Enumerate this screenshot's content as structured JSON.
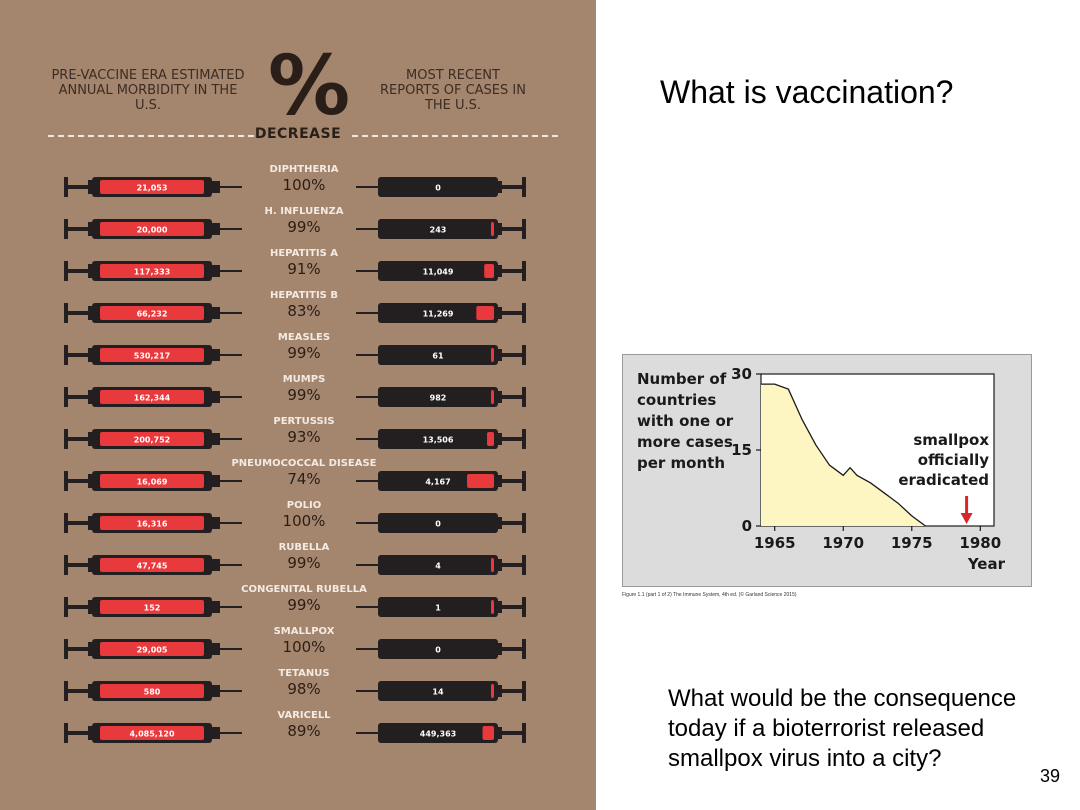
{
  "slide": {
    "title": "What is vaccination?",
    "question": "What would be the consequence today if a bioterrorist released smallpox virus into a city?",
    "page_number": "39",
    "figure_caption": "Figure 1.1 (part 1 of 2) The Immune System, 4th ed. (© Garland Science 2015)"
  },
  "infographic": {
    "header_left": "PRE-VACCINE ERA ESTIMATED ANNUAL MORBIDITY IN THE U.S.",
    "header_right": "MOST RECENT REPORTS OF CASES IN THE U.S.",
    "percent_symbol": "%",
    "decrease_label": "DECREASE",
    "colors": {
      "background": "#a4856d",
      "syringe": "#231f20",
      "fill": "#e8393c"
    },
    "rows": [
      {
        "disease": "DIPHTHERIA",
        "pct": "100%",
        "pre": "21,053",
        "recent": "0"
      },
      {
        "disease": "H. INFLUENZA",
        "pct": "99%",
        "pre": "20,000",
        "recent": "243"
      },
      {
        "disease": "HEPATITIS A",
        "pct": "91%",
        "pre": "117,333",
        "recent": "11,049"
      },
      {
        "disease": "HEPATITIS B",
        "pct": "83%",
        "pre": "66,232",
        "recent": "11,269"
      },
      {
        "disease": "MEASLES",
        "pct": "99%",
        "pre": "530,217",
        "recent": "61"
      },
      {
        "disease": "MUMPS",
        "pct": "99%",
        "pre": "162,344",
        "recent": "982"
      },
      {
        "disease": "PERTUSSIS",
        "pct": "93%",
        "pre": "200,752",
        "recent": "13,506"
      },
      {
        "disease": "PNEUMOCOCCAL DISEASE",
        "pct": "74%",
        "pre": "16,069",
        "recent": "4,167"
      },
      {
        "disease": "POLIO",
        "pct": "100%",
        "pre": "16,316",
        "recent": "0"
      },
      {
        "disease": "RUBELLA",
        "pct": "99%",
        "pre": "47,745",
        "recent": "4"
      },
      {
        "disease": "CONGENITAL RUBELLA",
        "pct": "99%",
        "pre": "152",
        "recent": "1"
      },
      {
        "disease": "SMALLPOX",
        "pct": "100%",
        "pre": "29,005",
        "recent": "0"
      },
      {
        "disease": "TETANUS",
        "pct": "98%",
        "pre": "580",
        "recent": "14"
      },
      {
        "disease": "VARICELL",
        "pct": "89%",
        "pre": "4,085,120",
        "recent": "449,363"
      }
    ]
  },
  "chart_data": {
    "type": "area",
    "ylabel": "Number of countries with one or more cases per month",
    "xlabel": "Year",
    "annotation": "smallpox officially eradicated",
    "annotation_x": 1979,
    "x_ticks": [
      "1965",
      "1970",
      "1975",
      "1980"
    ],
    "y_ticks": [
      "0",
      "15",
      "30"
    ],
    "xlim": [
      1964,
      1981
    ],
    "ylim": [
      0,
      30
    ],
    "grid": false,
    "fill_color": "#fdf6c2",
    "arrow_color": "#d9262c",
    "x": [
      1964,
      1965,
      1966,
      1967,
      1968,
      1969,
      1970,
      1970.5,
      1971,
      1972,
      1973,
      1974,
      1975,
      1976
    ],
    "y": [
      28,
      28,
      27,
      21,
      16,
      12,
      10,
      11.5,
      10,
      8.5,
      6.5,
      4.5,
      2,
      0
    ]
  }
}
